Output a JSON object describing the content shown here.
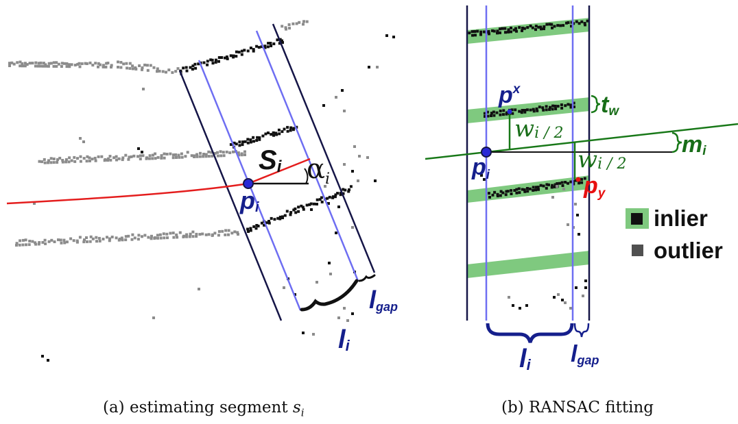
{
  "colors": {
    "frame": "#151547",
    "blue_line": "#6e6ef2",
    "red_line": "#e41d1d",
    "green_line": "#187818",
    "green_band": "#7fc97f",
    "inlier": "#111111",
    "outlier": "#8c8c8c",
    "label_blue": "#151f8c",
    "label_red": "#e81010",
    "label_green": "#186d18"
  },
  "panel_a": {
    "caption_text": "(a) estimating segment ",
    "caption_math": "s",
    "caption_sub": "i",
    "labels": {
      "s_main": "S",
      "s_sub": "i",
      "alpha_main": "α",
      "alpha_sub": "i",
      "p_main": "p",
      "p_sub": "i",
      "l_main": "l",
      "l_sub": "i",
      "lgap_main": "l",
      "lgap_sub": "gap"
    }
  },
  "panel_b": {
    "caption": "(b) RANSAC fitting",
    "labels": {
      "px_main": "p",
      "px_sub": "x",
      "py_main": "p",
      "py_sub": "y",
      "pi_main": "p",
      "pi_sub": "i",
      "tw_main": "t",
      "tw_sub": "w",
      "mi_main": "m",
      "mi_sub": "i",
      "w1_main": "w",
      "w1_sub": "i / 2",
      "w2_main": "w",
      "w2_sub": "i / 2",
      "li_main": "l",
      "li_sub": "i",
      "lgap_main": "l",
      "lgap_sub": "gap"
    },
    "legend": {
      "inlier": "inlier",
      "outlier": "outlier"
    }
  }
}
